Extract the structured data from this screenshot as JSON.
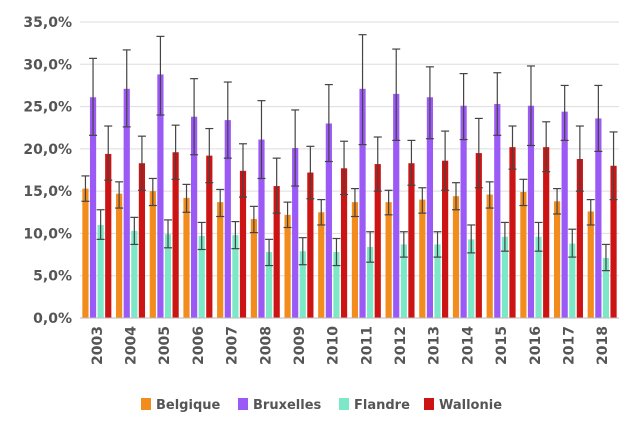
{
  "chart_data": {
    "type": "bar",
    "title": "",
    "xlabel": "",
    "ylabel": "",
    "ylim": [
      0,
      35
    ],
    "y_ticks": [
      "0,0%",
      "5,0%",
      "10,0%",
      "15,0%",
      "20,0%",
      "25,0%",
      "30,0%",
      "35,0%"
    ],
    "grid": true,
    "legend_position": "bottom",
    "categories": [
      "2003",
      "2004",
      "2005",
      "2006",
      "2007",
      "2008",
      "2009",
      "2010",
      "2011",
      "2012",
      "2013",
      "2014",
      "2015",
      "2016",
      "2017",
      "2018"
    ],
    "series": [
      {
        "name": "Belgique",
        "color": "#f28c1c",
        "values": [
          15.3,
          14.7,
          15.0,
          14.2,
          13.7,
          11.7,
          12.2,
          12.5,
          13.7,
          13.7,
          14.0,
          14.4,
          14.6,
          14.9,
          13.8,
          12.6
        ],
        "err_low": [
          13.8,
          13.0,
          13.3,
          12.5,
          12.0,
          10.1,
          10.7,
          11.0,
          12.0,
          12.2,
          12.4,
          12.8,
          13.0,
          13.3,
          12.3,
          11.0
        ],
        "err_high": [
          16.8,
          16.1,
          16.5,
          15.8,
          15.2,
          13.2,
          13.7,
          14.0,
          15.3,
          15.1,
          15.4,
          16.0,
          16.1,
          16.4,
          15.3,
          14.0
        ]
      },
      {
        "name": "Bruxelles",
        "color": "#9b59f5",
        "values": [
          26.1,
          27.1,
          28.8,
          23.8,
          23.4,
          21.1,
          20.1,
          23.0,
          27.1,
          26.5,
          26.1,
          25.1,
          25.3,
          25.1,
          24.4,
          23.6
        ],
        "err_low": [
          21.6,
          22.6,
          24.0,
          19.3,
          18.9,
          16.5,
          15.6,
          18.5,
          20.5,
          21.0,
          21.2,
          21.1,
          21.6,
          20.4,
          21.0,
          19.7
        ],
        "err_high": [
          30.7,
          31.7,
          33.3,
          28.3,
          27.9,
          25.7,
          24.6,
          27.6,
          33.5,
          31.8,
          29.7,
          28.9,
          29.0,
          29.8,
          27.5,
          27.5
        ]
      },
      {
        "name": "Flandre",
        "color": "#7de8c8",
        "values": [
          11.0,
          10.3,
          9.9,
          9.7,
          9.8,
          7.8,
          7.9,
          7.8,
          8.4,
          8.7,
          8.7,
          9.3,
          9.6,
          9.6,
          8.8,
          7.1
        ],
        "err_low": [
          9.3,
          8.7,
          8.3,
          8.1,
          8.2,
          6.2,
          6.3,
          6.2,
          6.6,
          7.2,
          7.2,
          7.7,
          7.9,
          7.9,
          7.2,
          5.6
        ],
        "err_high": [
          12.8,
          11.9,
          11.6,
          11.3,
          11.4,
          9.3,
          9.5,
          9.4,
          10.2,
          10.2,
          10.2,
          11.0,
          11.3,
          11.3,
          10.5,
          8.7
        ]
      },
      {
        "name": "Wallonie",
        "color": "#cc1414",
        "values": [
          19.4,
          18.3,
          19.6,
          19.2,
          17.4,
          15.6,
          17.2,
          17.7,
          18.2,
          18.3,
          18.6,
          19.5,
          20.2,
          20.2,
          18.8,
          18.0
        ],
        "err_low": [
          16.3,
          15.1,
          16.4,
          16.0,
          14.3,
          12.4,
          14.1,
          14.6,
          15.0,
          15.7,
          15.1,
          15.4,
          17.6,
          17.3,
          15.0,
          14.0
        ],
        "err_high": [
          22.7,
          21.5,
          22.8,
          22.4,
          20.6,
          18.9,
          20.3,
          20.9,
          21.4,
          21.0,
          22.1,
          23.6,
          22.7,
          23.2,
          22.7,
          22.0
        ]
      }
    ]
  }
}
